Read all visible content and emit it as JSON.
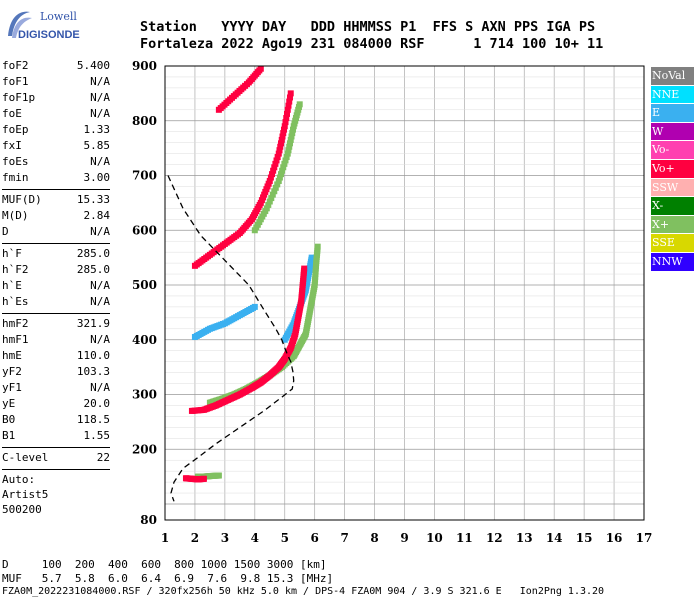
{
  "logo": {
    "line1": "Lowell",
    "line2": "DIGISONDE"
  },
  "header": {
    "row1": "Station   YYYY DAY   DDD HHMMSS P1  FFS S AXN PPS IGA PS",
    "row2": "Fortaleza 2022 Ago19 231 084000 RSF      1 714 100 10+ 11"
  },
  "params": {
    "group1": [
      {
        "name": "foF2",
        "value": "5.400"
      },
      {
        "name": "foF1",
        "value": "N/A"
      },
      {
        "name": "foF1p",
        "value": "N/A"
      },
      {
        "name": "foE",
        "value": "N/A"
      },
      {
        "name": "foEp",
        "value": "1.33"
      },
      {
        "name": "fxI",
        "value": "5.85"
      },
      {
        "name": "foEs",
        "value": "N/A"
      },
      {
        "name": "fmin",
        "value": "3.00"
      }
    ],
    "group2": [
      {
        "name": "MUF(D)",
        "value": "15.33"
      },
      {
        "name": "M(D)",
        "value": "2.84"
      },
      {
        "name": "D",
        "value": "N/A"
      }
    ],
    "group3": [
      {
        "name": "h`F",
        "value": "285.0"
      },
      {
        "name": "h`F2",
        "value": "285.0"
      },
      {
        "name": "h`E",
        "value": "N/A"
      },
      {
        "name": "h`Es",
        "value": "N/A"
      }
    ],
    "group4": [
      {
        "name": "hmF2",
        "value": "321.9"
      },
      {
        "name": "hmF1",
        "value": "N/A"
      },
      {
        "name": "hmE",
        "value": "110.0"
      },
      {
        "name": "yF2",
        "value": "103.3"
      },
      {
        "name": "yF1",
        "value": "N/A"
      },
      {
        "name": "yE",
        "value": "20.0"
      },
      {
        "name": "B0",
        "value": "118.5"
      },
      {
        "name": "B1",
        "value": "1.55"
      }
    ],
    "clevel": {
      "name": "C-level",
      "value": "22"
    },
    "auto": [
      "Auto:",
      "Artist5",
      "500200"
    ]
  },
  "legend": [
    {
      "label": "NoVal",
      "color": "#808080"
    },
    {
      "label": "NNE",
      "color": "#00e0ff"
    },
    {
      "label": "E",
      "color": "#3ab0f0"
    },
    {
      "label": "W",
      "color": "#b000b0"
    },
    {
      "label": "Vo-",
      "color": "#ff40b0"
    },
    {
      "label": "Vo+",
      "color": "#ff0040"
    },
    {
      "label": "SSW",
      "color": "#ffb0b0"
    },
    {
      "label": "X-",
      "color": "#008000"
    },
    {
      "label": "X+",
      "color": "#80c060"
    },
    {
      "label": "SSE",
      "color": "#d8d800"
    },
    {
      "label": "NNW",
      "color": "#3000ff"
    }
  ],
  "footer": {
    "d_row": "D     100  200  400  600  800 1000 1500 3000 [km]",
    "muf_row": "MUF   5.7  5.8  6.0  6.4  6.9  7.6  9.8 15.3 [MHz]",
    "file_line": "FZA0M_2022231084000.RSF / 320fx256h 50 kHz 5.0 km / DPS-4 FZA0M 904 / 3.9 S 321.6 E   Ion2Png 1.3.20"
  },
  "chart_data": {
    "type": "scatter",
    "xlim": [
      1,
      17
    ],
    "ylim": [
      80,
      900
    ],
    "xticks": [
      1,
      2,
      3,
      4,
      5,
      6,
      7,
      8,
      9,
      10,
      11,
      12,
      13,
      14,
      15,
      16,
      17
    ],
    "yticks": [
      80,
      100,
      200,
      300,
      400,
      500,
      600,
      700,
      800,
      900
    ],
    "ytick_labels": [
      "80",
      "",
      "200",
      "300",
      "400",
      "500",
      "600",
      "700",
      "800",
      "900"
    ],
    "grid": true,
    "profile_line": [
      [
        1.1,
        700
      ],
      [
        1.6,
        640
      ],
      [
        2.2,
        590
      ],
      [
        3.0,
        545
      ],
      [
        3.8,
        500
      ],
      [
        4.3,
        455
      ],
      [
        4.7,
        420
      ],
      [
        4.9,
        400
      ],
      [
        5.0,
        385
      ],
      [
        5.1,
        372
      ],
      [
        5.2,
        360
      ],
      [
        5.28,
        340
      ],
      [
        5.3,
        325
      ],
      [
        5.25,
        310
      ],
      [
        4.9,
        295
      ],
      [
        4.3,
        270
      ],
      [
        3.5,
        240
      ],
      [
        2.7,
        210
      ],
      [
        2.1,
        185
      ],
      [
        1.6,
        165
      ],
      [
        1.3,
        140
      ],
      [
        1.2,
        120
      ],
      [
        1.3,
        105
      ]
    ],
    "trace_Fo": {
      "color": "#ff0040",
      "points": [
        [
          1.9,
          270
        ],
        [
          2.3,
          272
        ],
        [
          2.7,
          280
        ],
        [
          3.1,
          290
        ],
        [
          3.5,
          300
        ],
        [
          3.9,
          312
        ],
        [
          4.2,
          322
        ],
        [
          4.5,
          335
        ],
        [
          4.8,
          350
        ],
        [
          5.0,
          365
        ],
        [
          5.2,
          385
        ],
        [
          5.35,
          410
        ],
        [
          5.45,
          440
        ],
        [
          5.55,
          470
        ],
        [
          5.6,
          500
        ],
        [
          5.65,
          530
        ]
      ]
    },
    "trace_Fx": {
      "color": "#80c060",
      "points": [
        [
          2.5,
          285
        ],
        [
          2.9,
          292
        ],
        [
          3.3,
          300
        ],
        [
          3.7,
          310
        ],
        [
          4.1,
          322
        ],
        [
          4.5,
          335
        ],
        [
          4.9,
          350
        ],
        [
          5.3,
          370
        ],
        [
          5.5,
          390
        ],
        [
          5.7,
          410
        ],
        [
          5.8,
          440
        ],
        [
          5.9,
          470
        ],
        [
          6.0,
          500
        ],
        [
          6.05,
          540
        ],
        [
          6.1,
          570
        ]
      ]
    },
    "trace_FE": {
      "color": "#3ab0f0",
      "points": [
        [
          5.0,
          400
        ],
        [
          5.3,
          430
        ],
        [
          5.5,
          460
        ],
        [
          5.7,
          490
        ],
        [
          5.8,
          520
        ],
        [
          5.9,
          550
        ]
      ]
    },
    "trace_2F": {
      "color": "#ff0040",
      "points": [
        [
          2.0,
          535
        ],
        [
          2.5,
          555
        ],
        [
          3.0,
          575
        ],
        [
          3.5,
          595
        ],
        [
          3.9,
          620
        ],
        [
          4.2,
          650
        ],
        [
          4.5,
          690
        ],
        [
          4.8,
          740
        ],
        [
          5.0,
          790
        ],
        [
          5.2,
          850
        ]
      ]
    },
    "trace_2Fx": {
      "color": "#80c060",
      "points": [
        [
          4.0,
          600
        ],
        [
          4.4,
          640
        ],
        [
          4.8,
          690
        ],
        [
          5.1,
          740
        ],
        [
          5.3,
          790
        ],
        [
          5.5,
          830
        ]
      ]
    },
    "trace_3F": {
      "color": "#ff0040",
      "points": [
        [
          2.8,
          820
        ],
        [
          3.3,
          845
        ],
        [
          3.8,
          870
        ],
        [
          4.2,
          895
        ]
      ]
    },
    "trace_E": {
      "color": "#ff0040",
      "points": [
        [
          1.7,
          147
        ],
        [
          1.9,
          146
        ],
        [
          2.1,
          145
        ],
        [
          2.3,
          146
        ]
      ]
    },
    "trace_Es": {
      "color": "#80c060",
      "points": [
        [
          2.1,
          150
        ],
        [
          2.3,
          150
        ],
        [
          2.5,
          151
        ],
        [
          2.8,
          152
        ]
      ]
    },
    "trace_mid": {
      "color": "#3ab0f0",
      "points": [
        [
          2.0,
          405
        ],
        [
          2.5,
          420
        ],
        [
          3.0,
          430
        ],
        [
          3.5,
          445
        ],
        [
          4.0,
          460
        ]
      ]
    }
  }
}
